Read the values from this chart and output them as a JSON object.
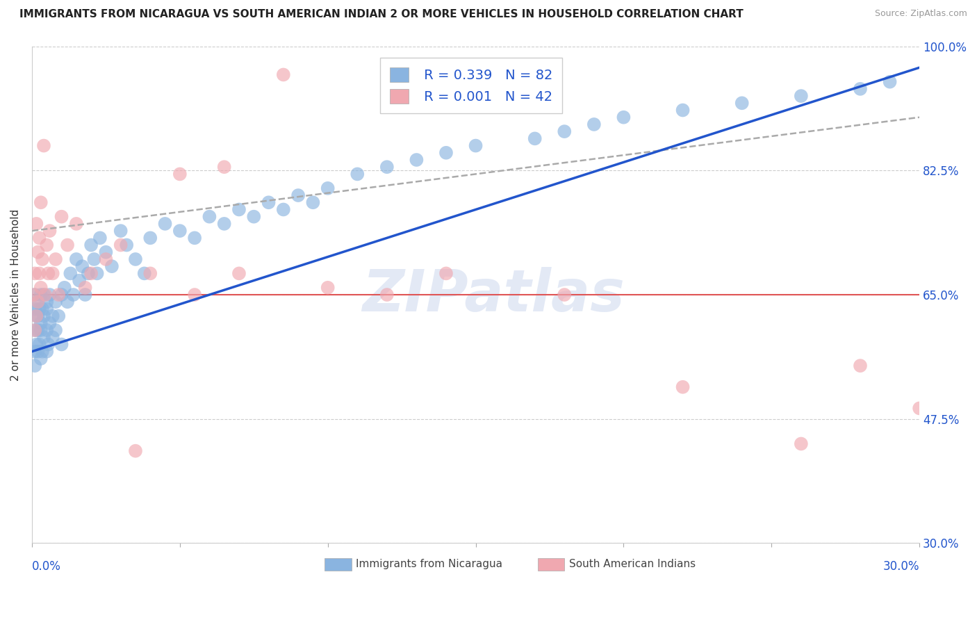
{
  "title": "IMMIGRANTS FROM NICARAGUA VS SOUTH AMERICAN INDIAN 2 OR MORE VEHICLES IN HOUSEHOLD CORRELATION CHART",
  "source": "Source: ZipAtlas.com",
  "ylabel": "2 or more Vehicles in Household",
  "xmin": 0.0,
  "xmax": 30.0,
  "ymin": 30.0,
  "ymax": 100.0,
  "yticks": [
    30.0,
    47.5,
    65.0,
    82.5,
    100.0
  ],
  "horizontal_line_y": 65.0,
  "horizontal_line_color": "#e05555",
  "blue_color": "#8ab4e0",
  "pink_color": "#f0a8b0",
  "blue_trend_color": "#2255cc",
  "gray_trend_color": "#aaaaaa",
  "legend_text_color": "#2255cc",
  "legend_label1": "Immigrants from Nicaragua",
  "legend_label2": "South American Indians",
  "watermark": "ZIPatlas",
  "blue_trend_x0": 0.0,
  "blue_trend_y0": 57.0,
  "blue_trend_x1": 30.0,
  "blue_trend_y1": 97.0,
  "gray_trend_x0": 0.0,
  "gray_trend_y0": 74.0,
  "gray_trend_x1": 30.0,
  "gray_trend_y1": 90.0,
  "blue_x": [
    0.1,
    0.1,
    0.1,
    0.1,
    0.1,
    0.15,
    0.15,
    0.2,
    0.2,
    0.2,
    0.2,
    0.25,
    0.25,
    0.3,
    0.3,
    0.3,
    0.3,
    0.35,
    0.35,
    0.4,
    0.4,
    0.4,
    0.5,
    0.5,
    0.5,
    0.5,
    0.55,
    0.6,
    0.6,
    0.7,
    0.7,
    0.8,
    0.8,
    0.9,
    1.0,
    1.0,
    1.1,
    1.2,
    1.3,
    1.4,
    1.5,
    1.6,
    1.7,
    1.8,
    1.9,
    2.0,
    2.1,
    2.2,
    2.3,
    2.5,
    2.7,
    3.0,
    3.2,
    3.5,
    3.8,
    4.0,
    4.5,
    5.0,
    5.5,
    6.0,
    6.5,
    7.0,
    7.5,
    8.0,
    8.5,
    9.0,
    9.5,
    10.0,
    11.0,
    12.0,
    13.0,
    14.0,
    15.0,
    17.0,
    18.0,
    19.0,
    20.0,
    22.0,
    24.0,
    26.0,
    28.0,
    29.0
  ],
  "blue_y": [
    60.0,
    63.0,
    57.0,
    65.0,
    55.0,
    62.0,
    58.0,
    60.0,
    64.0,
    57.0,
    62.0,
    63.0,
    58.0,
    61.0,
    65.0,
    56.0,
    60.0,
    63.0,
    57.0,
    65.0,
    59.0,
    62.0,
    64.0,
    60.0,
    57.0,
    63.0,
    58.0,
    65.0,
    61.0,
    62.0,
    59.0,
    64.0,
    60.0,
    62.0,
    65.0,
    58.0,
    66.0,
    64.0,
    68.0,
    65.0,
    70.0,
    67.0,
    69.0,
    65.0,
    68.0,
    72.0,
    70.0,
    68.0,
    73.0,
    71.0,
    69.0,
    74.0,
    72.0,
    70.0,
    68.0,
    73.0,
    75.0,
    74.0,
    73.0,
    76.0,
    75.0,
    77.0,
    76.0,
    78.0,
    77.0,
    79.0,
    78.0,
    80.0,
    82.0,
    83.0,
    84.0,
    85.0,
    86.0,
    87.0,
    88.0,
    89.0,
    90.0,
    91.0,
    92.0,
    93.0,
    94.0,
    95.0
  ],
  "pink_x": [
    0.05,
    0.1,
    0.1,
    0.15,
    0.15,
    0.2,
    0.2,
    0.25,
    0.25,
    0.3,
    0.3,
    0.35,
    0.4,
    0.45,
    0.5,
    0.55,
    0.6,
    0.7,
    0.8,
    0.9,
    1.0,
    1.2,
    1.5,
    1.8,
    2.0,
    2.5,
    3.0,
    3.5,
    4.0,
    5.0,
    5.5,
    6.5,
    7.0,
    8.5,
    10.0,
    12.0,
    14.0,
    18.0,
    22.0,
    26.0,
    28.0,
    30.0
  ],
  "pink_y": [
    65.0,
    68.0,
    60.0,
    75.0,
    62.0,
    71.0,
    64.0,
    68.0,
    73.0,
    66.0,
    78.0,
    70.0,
    86.0,
    65.0,
    72.0,
    68.0,
    74.0,
    68.0,
    70.0,
    65.0,
    76.0,
    72.0,
    75.0,
    66.0,
    68.0,
    70.0,
    72.0,
    43.0,
    68.0,
    82.0,
    65.0,
    83.0,
    68.0,
    96.0,
    66.0,
    65.0,
    68.0,
    65.0,
    52.0,
    44.0,
    55.0,
    49.0
  ]
}
